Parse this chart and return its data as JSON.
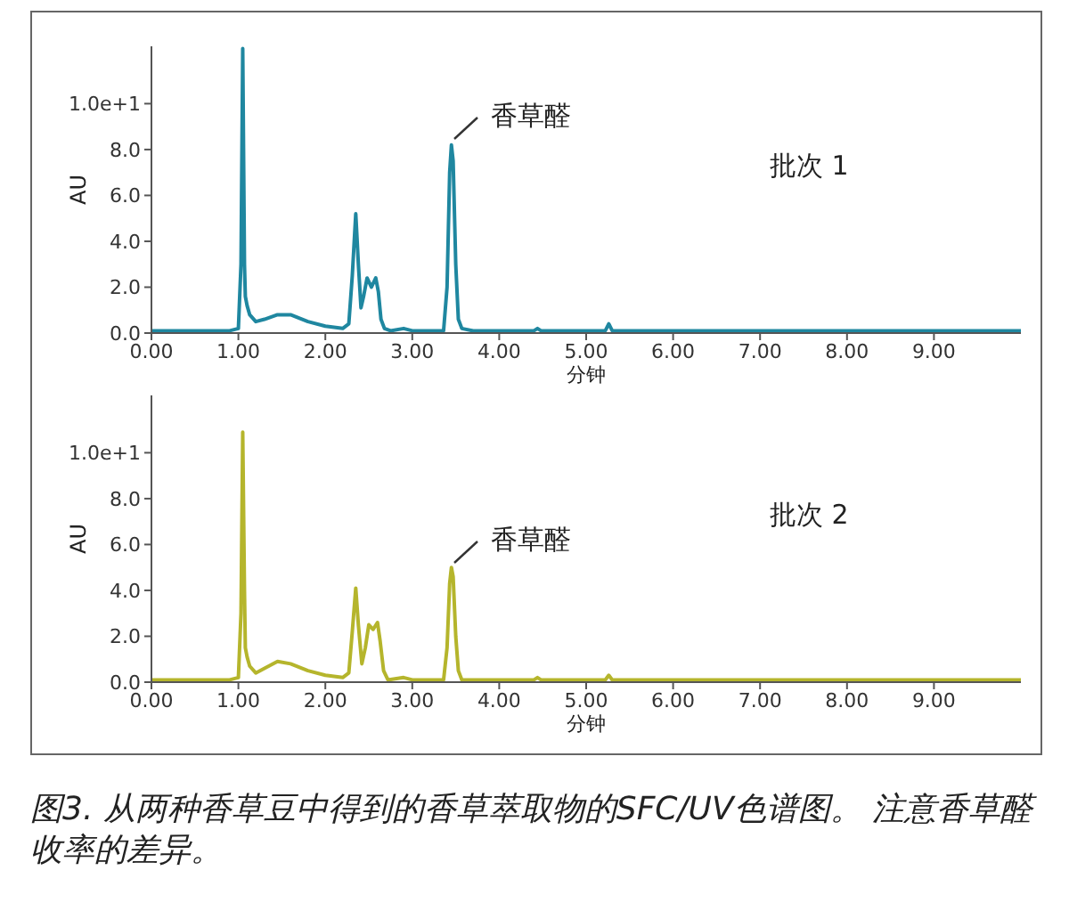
{
  "chart_data": [
    {
      "type": "line",
      "xlabel": "分钟",
      "ylabel": "AU",
      "x": [
        0,
        0.3,
        0.6,
        0.9,
        1.0,
        1.03,
        1.05,
        1.07,
        1.08,
        1.1,
        1.13,
        1.2,
        1.3,
        1.45,
        1.6,
        1.8,
        2.0,
        2.2,
        2.27,
        2.31,
        2.35,
        2.38,
        2.41,
        2.44,
        2.48,
        2.53,
        2.58,
        2.61,
        2.64,
        2.68,
        2.75,
        2.9,
        3.0,
        3.2,
        3.36,
        3.4,
        3.43,
        3.45,
        3.47,
        3.5,
        3.53,
        3.57,
        3.7,
        4.0,
        4.4,
        4.44,
        4.48,
        5.0,
        5.22,
        5.26,
        5.3,
        6.0,
        7.0,
        8.0,
        9.0,
        10.0
      ],
      "series": [
        {
          "color": "#1f87a0",
          "values": [
            0.1,
            0.1,
            0.1,
            0.1,
            0.2,
            3.0,
            12.4,
            3.0,
            1.6,
            1.2,
            0.8,
            0.5,
            0.6,
            0.8,
            0.8,
            0.5,
            0.3,
            0.2,
            0.4,
            2.5,
            5.2,
            3.0,
            1.1,
            1.6,
            2.4,
            2.0,
            2.4,
            1.8,
            0.6,
            0.2,
            0.1,
            0.2,
            0.1,
            0.1,
            0.1,
            2.0,
            7.0,
            8.2,
            7.5,
            3.0,
            0.6,
            0.2,
            0.1,
            0.1,
            0.1,
            0.2,
            0.1,
            0.1,
            0.1,
            0.4,
            0.1,
            0.1,
            0.1,
            0.1,
            0.1,
            0.1
          ]
        }
      ],
      "xlim": [
        0,
        10
      ],
      "xticks": [
        {
          "value": 0,
          "label": "0.00"
        },
        {
          "value": 1,
          "label": "1.00"
        },
        {
          "value": 2,
          "label": "2.00"
        },
        {
          "value": 3,
          "label": "3.00"
        },
        {
          "value": 4,
          "label": "4.00"
        },
        {
          "value": 5,
          "label": "5.00"
        },
        {
          "value": 6,
          "label": "6.00"
        },
        {
          "value": 7,
          "label": "7.00"
        },
        {
          "value": 8,
          "label": "8.00"
        },
        {
          "value": 9,
          "label": "9.00"
        }
      ],
      "ylim": [
        0,
        12.5
      ],
      "yticks": [
        {
          "value": 0,
          "label": "0.0"
        },
        {
          "value": 2,
          "label": "2.0"
        },
        {
          "value": 4,
          "label": "4.0"
        },
        {
          "value": 6,
          "label": "6.0"
        },
        {
          "value": 8,
          "label": "8.0"
        },
        {
          "value": 10,
          "label": "1.0e+1"
        }
      ],
      "annotations": [
        {
          "text": "香草醛",
          "x": 3.45,
          "y": 8.2
        },
        "批次 1"
      ]
    },
    {
      "type": "line",
      "xlabel": "分钟",
      "ylabel": "AU",
      "x": [
        0,
        0.3,
        0.6,
        0.9,
        1.0,
        1.03,
        1.05,
        1.07,
        1.08,
        1.1,
        1.13,
        1.2,
        1.3,
        1.45,
        1.6,
        1.8,
        2.0,
        2.2,
        2.27,
        2.31,
        2.35,
        2.38,
        2.42,
        2.46,
        2.5,
        2.55,
        2.6,
        2.63,
        2.67,
        2.72,
        2.9,
        3.0,
        3.2,
        3.36,
        3.4,
        3.43,
        3.45,
        3.47,
        3.5,
        3.53,
        3.57,
        3.7,
        4.0,
        4.4,
        4.44,
        4.48,
        5.0,
        5.22,
        5.26,
        5.3,
        6.0,
        7.0,
        8.0,
        9.0,
        10.0
      ],
      "series": [
        {
          "color": "#b5b52c",
          "values": [
            0.1,
            0.1,
            0.1,
            0.1,
            0.2,
            3.0,
            10.9,
            4.0,
            1.5,
            1.1,
            0.7,
            0.4,
            0.6,
            0.9,
            0.8,
            0.5,
            0.3,
            0.2,
            0.4,
            2.2,
            4.1,
            2.5,
            0.8,
            1.5,
            2.5,
            2.3,
            2.6,
            1.8,
            0.5,
            0.1,
            0.2,
            0.1,
            0.1,
            0.1,
            1.5,
            4.3,
            5.0,
            4.6,
            2.0,
            0.5,
            0.1,
            0.1,
            0.1,
            0.1,
            0.2,
            0.1,
            0.1,
            0.1,
            0.3,
            0.1,
            0.1,
            0.1,
            0.1,
            0.1,
            0.1
          ]
        }
      ],
      "xlim": [
        0,
        10
      ],
      "xticks": [
        {
          "value": 0,
          "label": "0.00"
        },
        {
          "value": 1,
          "label": "1.00"
        },
        {
          "value": 2,
          "label": "2.00"
        },
        {
          "value": 3,
          "label": "3.00"
        },
        {
          "value": 4,
          "label": "4.00"
        },
        {
          "value": 5,
          "label": "5.00"
        },
        {
          "value": 6,
          "label": "6.00"
        },
        {
          "value": 7,
          "label": "7.00"
        },
        {
          "value": 8,
          "label": "8.00"
        },
        {
          "value": 9,
          "label": "9.00"
        }
      ],
      "ylim": [
        0,
        12.5
      ],
      "yticks": [
        {
          "value": 0,
          "label": "0.0"
        },
        {
          "value": 2,
          "label": "2.0"
        },
        {
          "value": 4,
          "label": "4.0"
        },
        {
          "value": 6,
          "label": "6.0"
        },
        {
          "value": 8,
          "label": "8.0"
        },
        {
          "value": 10,
          "label": "1.0e+1"
        }
      ],
      "annotations": [
        {
          "text": "香草醛",
          "x": 3.45,
          "y": 5.0
        },
        "批次 2",
        "图3. 从两种香草豆中得到的香草萃取物的SFC/UV色谱图。 注意香草醛收率的差异。"
      ]
    }
  ]
}
